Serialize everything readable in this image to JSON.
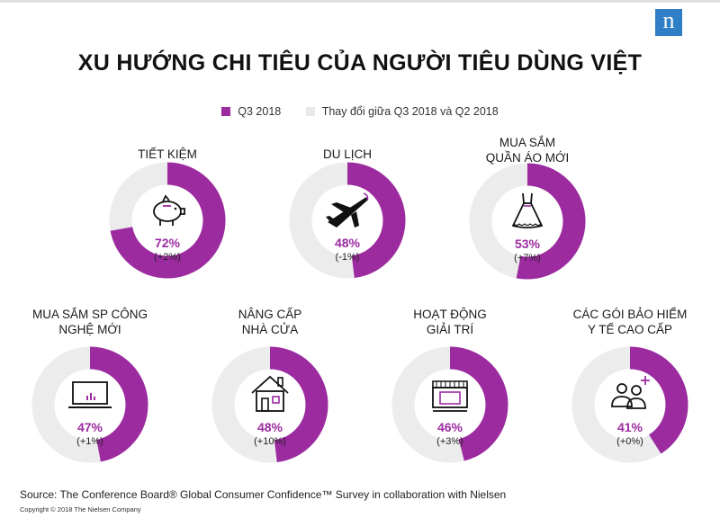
{
  "brand": {
    "logo_letter": "n",
    "logo_color": "#2f7fc7"
  },
  "chart_data": {
    "type": "donut",
    "title": "XU HƯỚNG CHI TIÊU CỦA NGƯỜI TIÊU DÙNG VIỆT",
    "legend": [
      {
        "label": "Q3 2018",
        "color": "#9c2ba0"
      },
      {
        "label": "Thay đổi giữa Q3 2018 và Q2 2018",
        "color": "#e8e8e8"
      }
    ],
    "ring_color": "#9c2ba0",
    "track_color": "#ececec",
    "categories": [
      {
        "name": "TIẾT KIỆM",
        "value": 72,
        "value_label": "72%",
        "change": 2,
        "change_label": "(+2%)",
        "icon": "piggy-bank-icon"
      },
      {
        "name": "DU LỊCH",
        "value": 48,
        "value_label": "48%",
        "change": -1,
        "change_label": "(-1%)",
        "icon": "airplane-icon"
      },
      {
        "name": "MUA SẮM\nQUẦN ÁO MỚI",
        "value": 53,
        "value_label": "53%",
        "change": 7,
        "change_label": "(+7%)",
        "icon": "dress-icon"
      },
      {
        "name": "MUA SẮM SP CÔNG\nNGHỆ MỚI",
        "value": 47,
        "value_label": "47%",
        "change": 1,
        "change_label": "(+1%)",
        "icon": "laptop-icon"
      },
      {
        "name": "NÂNG CẤP\nNHÀ CỬA",
        "value": 48,
        "value_label": "48%",
        "change": 10,
        "change_label": "(+10%)",
        "icon": "house-icon"
      },
      {
        "name": "HOẠT ĐỘNG\nGIẢI TRÍ",
        "value": 46,
        "value_label": "46%",
        "change": 3,
        "change_label": "(+3%)",
        "icon": "cinema-icon"
      },
      {
        "name": "CÁC GÓI BẢO HIỂM\nY TẾ CAO CẤP",
        "value": 41,
        "value_label": "41%",
        "change": 0,
        "change_label": "(+0%)",
        "icon": "people-plus-icon"
      }
    ]
  },
  "footer": {
    "source": "Source: The Conference Board® Global Consumer Confidence™ Survey in collaboration with Nielsen",
    "copyright": "Copyright © 2018  The Nielsen Company"
  }
}
